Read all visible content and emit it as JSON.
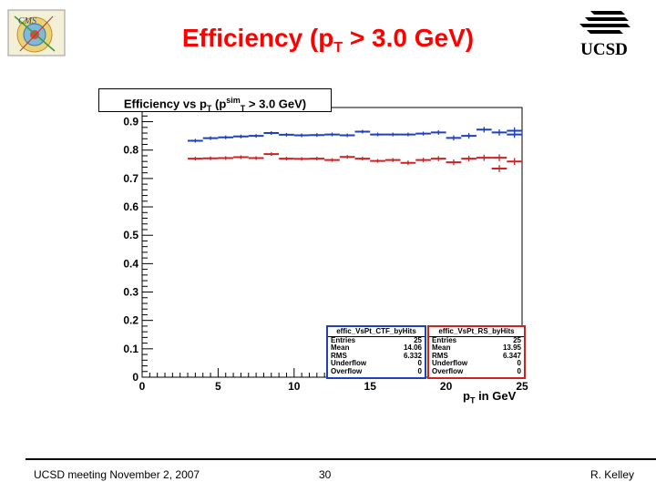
{
  "slide": {
    "title_prefix": "Efficiency (p",
    "title_sub": "T",
    "title_suffix": " > 3.0 GeV)",
    "footer_left": "UCSD meeting November 2, 2007",
    "footer_center": "30",
    "footer_right": "R. Kelley",
    "logos": {
      "left": "cms-logo",
      "right": "UCSD"
    }
  },
  "chart_data": {
    "type": "scatter",
    "title_parts": {
      "a": "Efficiency vs p",
      "b": "T",
      "c": " (p",
      "d": "sim",
      "e": "T",
      "f": " > 3.0 GeV)"
    },
    "xlabel_parts": {
      "a": "p",
      "b": "T",
      "c": " in GeV"
    },
    "ylabel": "",
    "xlim": [
      0,
      25
    ],
    "ylim": [
      0,
      0.95
    ],
    "xticks": [
      "0",
      "5",
      "10",
      "15",
      "20",
      "25"
    ],
    "yticks": [
      "0",
      "0.1",
      "0.2",
      "0.3",
      "0.4",
      "0.5",
      "0.6",
      "0.7",
      "0.8",
      "0.9"
    ],
    "grid": false,
    "colors": {
      "ctf": "#1f3fbf",
      "rs": "#cc2222",
      "frame": "#000000"
    },
    "series": [
      {
        "name": "effic_VsPt_CTF_byHits",
        "color": "#1f3fbf",
        "points": [
          {
            "x": 3.5,
            "y": 0.833,
            "xerr": 0.5,
            "yerr": 0.002
          },
          {
            "x": 4.5,
            "y": 0.842,
            "xerr": 0.5,
            "yerr": 0.002
          },
          {
            "x": 5.5,
            "y": 0.845,
            "xerr": 0.5,
            "yerr": 0.002
          },
          {
            "x": 6.5,
            "y": 0.848,
            "xerr": 0.5,
            "yerr": 0.002
          },
          {
            "x": 7.5,
            "y": 0.85,
            "xerr": 0.5,
            "yerr": 0.003
          },
          {
            "x": 8.5,
            "y": 0.86,
            "xerr": 0.5,
            "yerr": 0.003
          },
          {
            "x": 9.5,
            "y": 0.854,
            "xerr": 0.5,
            "yerr": 0.003
          },
          {
            "x": 10.5,
            "y": 0.852,
            "xerr": 0.5,
            "yerr": 0.003
          },
          {
            "x": 11.5,
            "y": 0.853,
            "xerr": 0.5,
            "yerr": 0.004
          },
          {
            "x": 12.5,
            "y": 0.855,
            "xerr": 0.5,
            "yerr": 0.004
          },
          {
            "x": 13.5,
            "y": 0.852,
            "xerr": 0.5,
            "yerr": 0.005
          },
          {
            "x": 14.5,
            "y": 0.865,
            "xerr": 0.5,
            "yerr": 0.005
          },
          {
            "x": 15.5,
            "y": 0.855,
            "xerr": 0.5,
            "yerr": 0.005
          },
          {
            "x": 16.5,
            "y": 0.855,
            "xerr": 0.5,
            "yerr": 0.006
          },
          {
            "x": 17.5,
            "y": 0.855,
            "xerr": 0.5,
            "yerr": 0.006
          },
          {
            "x": 18.5,
            "y": 0.858,
            "xerr": 0.5,
            "yerr": 0.007
          },
          {
            "x": 19.5,
            "y": 0.862,
            "xerr": 0.5,
            "yerr": 0.008
          },
          {
            "x": 20.5,
            "y": 0.843,
            "xerr": 0.5,
            "yerr": 0.009
          },
          {
            "x": 21.5,
            "y": 0.85,
            "xerr": 0.5,
            "yerr": 0.01
          },
          {
            "x": 22.5,
            "y": 0.872,
            "xerr": 0.5,
            "yerr": 0.01
          },
          {
            "x": 23.5,
            "y": 0.862,
            "xerr": 0.5,
            "yerr": 0.011
          },
          {
            "x": 24.5,
            "y": 0.855,
            "xerr": 0.5,
            "yerr": 0.012
          },
          {
            "x": 24.5,
            "y": 0.868,
            "xerr": 0.5,
            "yerr": 0.012
          }
        ],
        "stats": [
          {
            "label": "Entries",
            "value": "25"
          },
          {
            "label": "Mean",
            "value": "14.06"
          },
          {
            "label": "RMS",
            "value": "6.332"
          },
          {
            "label": "Underflow",
            "value": "0"
          },
          {
            "label": "Overflow",
            "value": "0"
          }
        ]
      },
      {
        "name": "effic_VsPt_RS_byHits",
        "color": "#cc2222",
        "points": [
          {
            "x": 3.5,
            "y": 0.77,
            "xerr": 0.5,
            "yerr": 0.002
          },
          {
            "x": 4.5,
            "y": 0.771,
            "xerr": 0.5,
            "yerr": 0.002
          },
          {
            "x": 5.5,
            "y": 0.772,
            "xerr": 0.5,
            "yerr": 0.002
          },
          {
            "x": 6.5,
            "y": 0.775,
            "xerr": 0.5,
            "yerr": 0.003
          },
          {
            "x": 7.5,
            "y": 0.772,
            "xerr": 0.5,
            "yerr": 0.003
          },
          {
            "x": 8.5,
            "y": 0.786,
            "xerr": 0.5,
            "yerr": 0.003
          },
          {
            "x": 9.5,
            "y": 0.77,
            "xerr": 0.5,
            "yerr": 0.003
          },
          {
            "x": 10.5,
            "y": 0.769,
            "xerr": 0.5,
            "yerr": 0.004
          },
          {
            "x": 11.5,
            "y": 0.77,
            "xerr": 0.5,
            "yerr": 0.004
          },
          {
            "x": 12.5,
            "y": 0.765,
            "xerr": 0.5,
            "yerr": 0.005
          },
          {
            "x": 13.5,
            "y": 0.776,
            "xerr": 0.5,
            "yerr": 0.005
          },
          {
            "x": 14.5,
            "y": 0.77,
            "xerr": 0.5,
            "yerr": 0.006
          },
          {
            "x": 15.5,
            "y": 0.762,
            "xerr": 0.5,
            "yerr": 0.006
          },
          {
            "x": 16.5,
            "y": 0.765,
            "xerr": 0.5,
            "yerr": 0.007
          },
          {
            "x": 17.5,
            "y": 0.755,
            "xerr": 0.5,
            "yerr": 0.008
          },
          {
            "x": 18.5,
            "y": 0.765,
            "xerr": 0.5,
            "yerr": 0.008
          },
          {
            "x": 19.5,
            "y": 0.77,
            "xerr": 0.5,
            "yerr": 0.009
          },
          {
            "x": 20.5,
            "y": 0.757,
            "xerr": 0.5,
            "yerr": 0.01
          },
          {
            "x": 21.5,
            "y": 0.77,
            "xerr": 0.5,
            "yerr": 0.01
          },
          {
            "x": 22.5,
            "y": 0.773,
            "xerr": 0.5,
            "yerr": 0.011
          },
          {
            "x": 23.5,
            "y": 0.773,
            "xerr": 0.5,
            "yerr": 0.012
          },
          {
            "x": 23.5,
            "y": 0.735,
            "xerr": 0.5,
            "yerr": 0.012
          },
          {
            "x": 24.5,
            "y": 0.76,
            "xerr": 0.5,
            "yerr": 0.012
          }
        ],
        "stats": [
          {
            "label": "Entries",
            "value": "25"
          },
          {
            "label": "Mean",
            "value": "13.95"
          },
          {
            "label": "RMS",
            "value": "6.347"
          },
          {
            "label": "Underflow",
            "value": "0"
          },
          {
            "label": "Overflow",
            "value": "0"
          }
        ]
      }
    ]
  }
}
